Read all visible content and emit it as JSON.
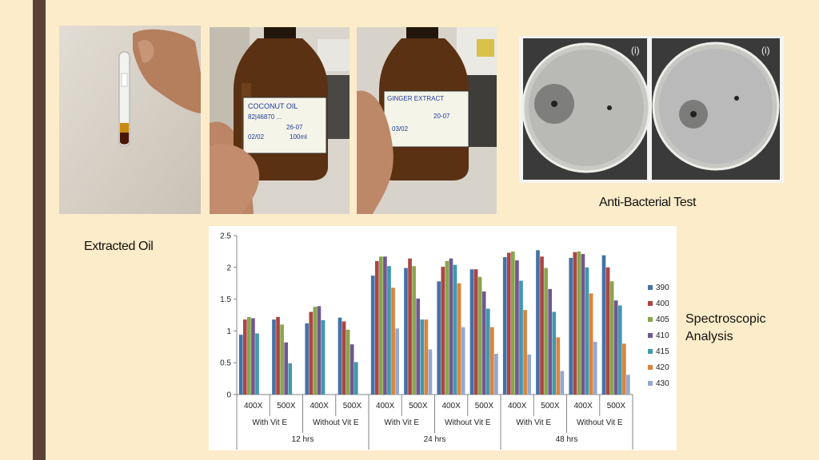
{
  "captions": {
    "extracted_oil": "Extracted Oil",
    "anti_bacterial": "Anti-Bacterial Test",
    "spectroscopic_line1": "Spectroscopic",
    "spectroscopic_line2": "Analysis"
  },
  "photos": {
    "bottle1_label": [
      "COCONUT OIL",
      "82|46870 ...",
      "26-07",
      "02/02",
      "100ml"
    ],
    "bottle2_label": [
      "GINGER EXTRACT",
      "20-07",
      "03/02"
    ],
    "petri_tags": [
      "(i)",
      "(i)"
    ]
  },
  "chart_data": {
    "type": "bar",
    "title": "",
    "xlabel": "",
    "ylabel": "",
    "ylim": [
      0,
      2.5
    ],
    "yticks": [
      "0",
      "0.5",
      "1",
      "1.5",
      "2",
      "2.5"
    ],
    "grid": false,
    "legend_position": "right",
    "categories": [
      "400X",
      "500X",
      "400X",
      "500X",
      "400X",
      "500X",
      "400X",
      "500X",
      "400X",
      "500X",
      "400X",
      "500X"
    ],
    "group_labels": [
      {
        "label": "With Vit E",
        "span": [
          0,
          1
        ]
      },
      {
        "label": "Without Vit E",
        "span": [
          2,
          3
        ]
      },
      {
        "label": "With Vit E",
        "span": [
          4,
          5
        ]
      },
      {
        "label": "Without Vit E",
        "span": [
          6,
          7
        ]
      },
      {
        "label": "With Vit E",
        "span": [
          8,
          9
        ]
      },
      {
        "label": "Without Vit E",
        "span": [
          10,
          11
        ]
      }
    ],
    "time_labels": [
      {
        "label": "12 hrs",
        "span": [
          0,
          3
        ]
      },
      {
        "label": "24 hrs",
        "span": [
          4,
          7
        ]
      },
      {
        "label": "48 hrs",
        "span": [
          8,
          11
        ]
      }
    ],
    "series": [
      {
        "name": "390",
        "color": "#4572a7",
        "values": [
          0.94,
          1.18,
          1.12,
          1.21,
          1.87,
          1.99,
          1.78,
          1.97,
          2.16,
          2.27,
          2.15,
          2.19
        ]
      },
      {
        "name": "400",
        "color": "#aa4643",
        "values": [
          1.18,
          1.22,
          1.3,
          1.15,
          2.1,
          2.14,
          2.01,
          1.97,
          2.23,
          2.17,
          2.24,
          2.0
        ]
      },
      {
        "name": "405",
        "color": "#89a54e",
        "values": [
          1.22,
          1.1,
          1.38,
          1.02,
          2.17,
          2.02,
          2.1,
          1.85,
          2.25,
          1.99,
          2.25,
          1.78
        ]
      },
      {
        "name": "410",
        "color": "#71588f",
        "values": [
          1.2,
          0.82,
          1.39,
          0.79,
          2.17,
          1.51,
          2.14,
          1.62,
          2.11,
          1.66,
          2.21,
          1.48
        ]
      },
      {
        "name": "415",
        "color": "#4198af",
        "values": [
          0.96,
          0.49,
          1.17,
          0.51,
          2.02,
          1.18,
          2.04,
          1.35,
          1.79,
          1.3,
          2.0,
          1.4
        ]
      },
      {
        "name": "420",
        "color": "#db843d",
        "values": [
          null,
          null,
          null,
          null,
          1.68,
          1.18,
          1.75,
          1.06,
          1.33,
          0.9,
          1.59,
          0.8
        ]
      },
      {
        "name": "430",
        "color": "#93a9cf",
        "values": [
          null,
          null,
          null,
          null,
          1.04,
          0.71,
          1.06,
          0.64,
          0.63,
          0.37,
          0.83,
          0.31
        ]
      }
    ]
  }
}
